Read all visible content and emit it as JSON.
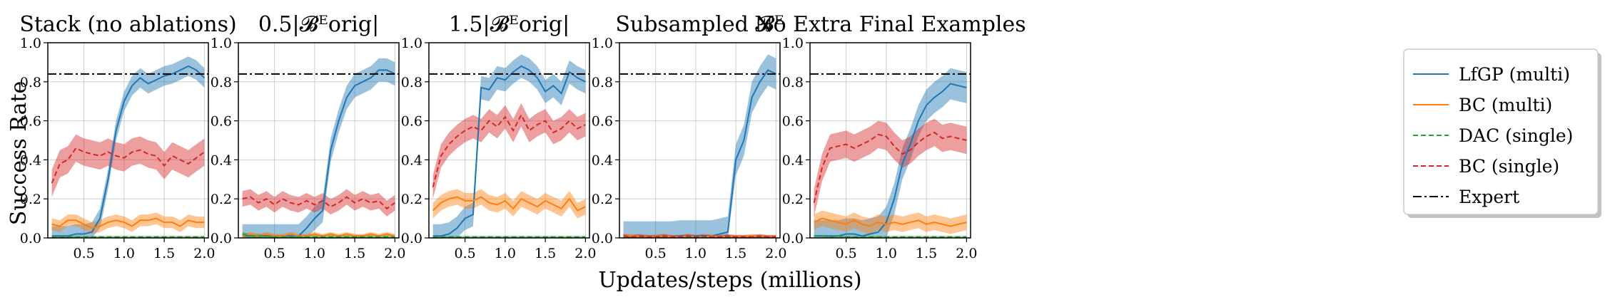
{
  "figure": {
    "xlabel": "Updates/steps (millions)",
    "ylabel": "Success Rate"
  },
  "legend": {
    "placement": "right",
    "entries": [
      {
        "label": "LfGP (multi)",
        "color": "#1f77b4",
        "style": "solid"
      },
      {
        "label": "BC (multi)",
        "color": "#ff7f0e",
        "style": "solid"
      },
      {
        "label": "DAC (single)",
        "color": "#2ca02c",
        "style": "dashed"
      },
      {
        "label": "BC (single)",
        "color": "#d62728",
        "style": "dashed"
      },
      {
        "label": "Expert",
        "color": "#000000",
        "style": "dashdot"
      }
    ]
  },
  "chart_data": [
    {
      "type": "line",
      "title": "Stack (no ablations)",
      "xlim": [
        0.05,
        2.05
      ],
      "ylim": [
        0,
        1.0
      ],
      "xticks": [
        "0.5",
        "1.0",
        "1.5",
        "2.0"
      ],
      "yticks": [
        "0.0",
        "0.2",
        "0.4",
        "0.6",
        "0.8",
        "1.0"
      ],
      "grid": true,
      "expert": 0.84,
      "x": [
        0.1,
        0.2,
        0.3,
        0.4,
        0.5,
        0.6,
        0.7,
        0.8,
        0.9,
        1.0,
        1.1,
        1.2,
        1.3,
        1.4,
        1.5,
        1.6,
        1.7,
        1.8,
        1.9,
        2.0
      ],
      "series": [
        {
          "name": "LfGP (multi)",
          "values": [
            0.01,
            0.01,
            0.01,
            0.02,
            0.02,
            0.03,
            0.1,
            0.3,
            0.55,
            0.7,
            0.78,
            0.82,
            0.79,
            0.81,
            0.83,
            0.84,
            0.86,
            0.88,
            0.86,
            0.82
          ],
          "band": 0.05
        },
        {
          "name": "BC (multi)",
          "values": [
            0.07,
            0.06,
            0.09,
            0.09,
            0.07,
            0.05,
            0.06,
            0.08,
            0.09,
            0.08,
            0.06,
            0.09,
            0.09,
            0.1,
            0.08,
            0.08,
            0.06,
            0.09,
            0.08,
            0.08
          ],
          "band": 0.03
        },
        {
          "name": "DAC (single)",
          "values": [
            0.005,
            0.005,
            0.005,
            0.005,
            0.005,
            0.005,
            0.005,
            0.005,
            0.005,
            0.005,
            0.005,
            0.005,
            0.005,
            0.005,
            0.005,
            0.005,
            0.005,
            0.005,
            0.005,
            0.005
          ],
          "band": 0.005
        },
        {
          "name": "BC (single)",
          "values": [
            0.28,
            0.38,
            0.4,
            0.46,
            0.44,
            0.43,
            0.42,
            0.44,
            0.42,
            0.41,
            0.44,
            0.45,
            0.43,
            0.42,
            0.37,
            0.42,
            0.4,
            0.38,
            0.41,
            0.44
          ],
          "band": 0.07
        }
      ]
    },
    {
      "type": "line",
      "title": "0.5|𝓑ᴱorig|",
      "xlim": [
        0.05,
        2.05
      ],
      "ylim": [
        0,
        1.0
      ],
      "xticks": [
        "0.5",
        "1.0",
        "1.5",
        "2.0"
      ],
      "yticks": [
        "0.0",
        "0.2",
        "0.4",
        "0.6",
        "0.8",
        "1.0"
      ],
      "grid": true,
      "expert": 0.84,
      "x": [
        0.1,
        0.2,
        0.3,
        0.4,
        0.5,
        0.6,
        0.7,
        0.8,
        0.9,
        1.0,
        1.1,
        1.2,
        1.3,
        1.4,
        1.5,
        1.6,
        1.7,
        1.8,
        1.9,
        2.0
      ],
      "series": [
        {
          "name": "LfGP (multi)",
          "values": [
            0.01,
            0.01,
            0.01,
            0.01,
            0.01,
            0.01,
            0.01,
            0.01,
            0.05,
            0.1,
            0.14,
            0.45,
            0.6,
            0.72,
            0.78,
            0.8,
            0.82,
            0.86,
            0.86,
            0.84
          ],
          "band": 0.06
        },
        {
          "name": "BC (multi)",
          "values": [
            0.01,
            0.02,
            0.01,
            0.02,
            0.01,
            0.01,
            0.02,
            0.01,
            0.01,
            0.02,
            0.01,
            0.02,
            0.01,
            0.02,
            0.01,
            0.01,
            0.02,
            0.01,
            0.02,
            0.01
          ],
          "band": 0.01
        },
        {
          "name": "DAC (single)",
          "values": [
            0.02,
            0.01,
            0.01,
            0.01,
            0.005,
            0.005,
            0.005,
            0.005,
            0.005,
            0.005,
            0.005,
            0.005,
            0.005,
            0.005,
            0.005,
            0.005,
            0.005,
            0.005,
            0.005,
            0.005
          ],
          "band": 0.01
        },
        {
          "name": "BC (single)",
          "values": [
            0.2,
            0.21,
            0.18,
            0.2,
            0.17,
            0.2,
            0.18,
            0.17,
            0.19,
            0.17,
            0.19,
            0.16,
            0.18,
            0.21,
            0.18,
            0.2,
            0.18,
            0.19,
            0.15,
            0.18
          ],
          "band": 0.04
        }
      ]
    },
    {
      "type": "line",
      "title": "1.5|𝓑ᴱorig|",
      "xlim": [
        0.05,
        2.05
      ],
      "ylim": [
        0,
        1.0
      ],
      "xticks": [
        "0.5",
        "1.0",
        "1.5",
        "2.0"
      ],
      "yticks": [
        "0.0",
        "0.2",
        "0.4",
        "0.6",
        "0.8",
        "1.0"
      ],
      "grid": true,
      "expert": 0.84,
      "x": [
        0.1,
        0.2,
        0.3,
        0.4,
        0.5,
        0.6,
        0.7,
        0.8,
        0.9,
        1.0,
        1.1,
        1.2,
        1.3,
        1.4,
        1.5,
        1.6,
        1.7,
        1.8,
        1.9,
        2.0
      ],
      "series": [
        {
          "name": "LfGP (multi)",
          "values": [
            0.01,
            0.01,
            0.02,
            0.05,
            0.1,
            0.12,
            0.77,
            0.76,
            0.82,
            0.81,
            0.85,
            0.88,
            0.86,
            0.82,
            0.75,
            0.78,
            0.74,
            0.85,
            0.82,
            0.8
          ],
          "band": 0.06
        },
        {
          "name": "BC (multi)",
          "values": [
            0.14,
            0.18,
            0.2,
            0.21,
            0.19,
            0.19,
            0.21,
            0.18,
            0.17,
            0.19,
            0.15,
            0.2,
            0.18,
            0.16,
            0.19,
            0.17,
            0.15,
            0.2,
            0.14,
            0.16
          ],
          "band": 0.04
        },
        {
          "name": "DAC (single)",
          "values": [
            0.005,
            0.005,
            0.005,
            0.005,
            0.005,
            0.005,
            0.005,
            0.005,
            0.005,
            0.005,
            0.005,
            0.005,
            0.005,
            0.005,
            0.005,
            0.005,
            0.005,
            0.005,
            0.005,
            0.005
          ],
          "band": 0.005
        },
        {
          "name": "BC (single)",
          "values": [
            0.26,
            0.42,
            0.48,
            0.52,
            0.55,
            0.57,
            0.55,
            0.6,
            0.57,
            0.62,
            0.55,
            0.63,
            0.55,
            0.58,
            0.6,
            0.54,
            0.56,
            0.6,
            0.56,
            0.58
          ],
          "band": 0.06
        }
      ]
    },
    {
      "type": "line",
      "title": "Subsampled 𝓑ᴱ",
      "xlim": [
        0.05,
        2.05
      ],
      "ylim": [
        0,
        1.0
      ],
      "xticks": [
        "0.5",
        "1.0",
        "1.5",
        "2.0"
      ],
      "yticks": [
        "0.0",
        "0.2",
        "0.4",
        "0.6",
        "0.8",
        "1.0"
      ],
      "grid": true,
      "expert": 0.84,
      "x": [
        0.1,
        0.2,
        0.3,
        0.4,
        0.5,
        0.6,
        0.7,
        0.8,
        0.9,
        1.0,
        1.1,
        1.2,
        1.3,
        1.4,
        1.5,
        1.6,
        1.7,
        1.8,
        1.9,
        2.0
      ],
      "series": [
        {
          "name": "LfGP (multi)",
          "values": [
            0.005,
            0.005,
            0.005,
            0.005,
            0.005,
            0.005,
            0.005,
            0.01,
            0.01,
            0.01,
            0.01,
            0.01,
            0.02,
            0.03,
            0.4,
            0.5,
            0.72,
            0.8,
            0.86,
            0.84
          ],
          "band": 0.08
        },
        {
          "name": "BC (multi)",
          "values": [
            0.01,
            0.01,
            0.005,
            0.005,
            0.005,
            0.01,
            0.005,
            0.005,
            0.01,
            0.005,
            0.005,
            0.01,
            0.005,
            0.005,
            0.005,
            0.005,
            0.01,
            0.005,
            0.005,
            0.005
          ],
          "band": 0.01
        },
        {
          "name": "DAC (single)",
          "values": [
            0.005,
            0.005,
            0.005,
            0.005,
            0.005,
            0.005,
            0.005,
            0.005,
            0.005,
            0.005,
            0.005,
            0.005,
            0.005,
            0.005,
            0.005,
            0.005,
            0.005,
            0.005,
            0.005,
            0.005
          ],
          "band": 0.005
        },
        {
          "name": "BC (single)",
          "values": [
            0.01,
            0.005,
            0.01,
            0.005,
            0.005,
            0.01,
            0.005,
            0.005,
            0.01,
            0.005,
            0.01,
            0.005,
            0.005,
            0.01,
            0.005,
            0.005,
            0.005,
            0.01,
            0.005,
            0.005
          ],
          "band": 0.01
        }
      ]
    },
    {
      "type": "line",
      "title": "No Extra Final Examples",
      "xlim": [
        0.05,
        2.05
      ],
      "ylim": [
        0,
        1.0
      ],
      "xticks": [
        "0.5",
        "1.0",
        "1.5",
        "2.0"
      ],
      "yticks": [
        "0.0",
        "0.2",
        "0.4",
        "0.6",
        "0.8",
        "1.0"
      ],
      "grid": true,
      "expert": 0.84,
      "x": [
        0.1,
        0.2,
        0.3,
        0.4,
        0.5,
        0.6,
        0.7,
        0.8,
        0.9,
        1.0,
        1.1,
        1.2,
        1.3,
        1.4,
        1.5,
        1.6,
        1.7,
        1.8,
        1.9,
        2.0
      ],
      "series": [
        {
          "name": "LfGP (multi)",
          "values": [
            0.01,
            0.01,
            0.01,
            0.01,
            0.02,
            0.02,
            0.01,
            0.02,
            0.03,
            0.08,
            0.2,
            0.38,
            0.48,
            0.6,
            0.68,
            0.72,
            0.75,
            0.79,
            0.78,
            0.77
          ],
          "band": 0.08
        },
        {
          "name": "BC (multi)",
          "values": [
            0.08,
            0.1,
            0.09,
            0.08,
            0.07,
            0.09,
            0.07,
            0.06,
            0.08,
            0.07,
            0.08,
            0.07,
            0.08,
            0.09,
            0.07,
            0.08,
            0.07,
            0.06,
            0.07,
            0.08
          ],
          "band": 0.04
        },
        {
          "name": "DAC (single)",
          "values": [
            0.01,
            0.01,
            0.005,
            0.01,
            0.005,
            0.005,
            0.005,
            0.005,
            0.005,
            0.005,
            0.005,
            0.005,
            0.005,
            0.005,
            0.005,
            0.005,
            0.005,
            0.005,
            0.005,
            0.005
          ],
          "band": 0.005
        },
        {
          "name": "BC (single)",
          "values": [
            0.18,
            0.36,
            0.46,
            0.47,
            0.48,
            0.46,
            0.48,
            0.5,
            0.53,
            0.52,
            0.47,
            0.43,
            0.45,
            0.49,
            0.52,
            0.54,
            0.51,
            0.52,
            0.51,
            0.5
          ],
          "band": 0.07
        }
      ]
    }
  ]
}
